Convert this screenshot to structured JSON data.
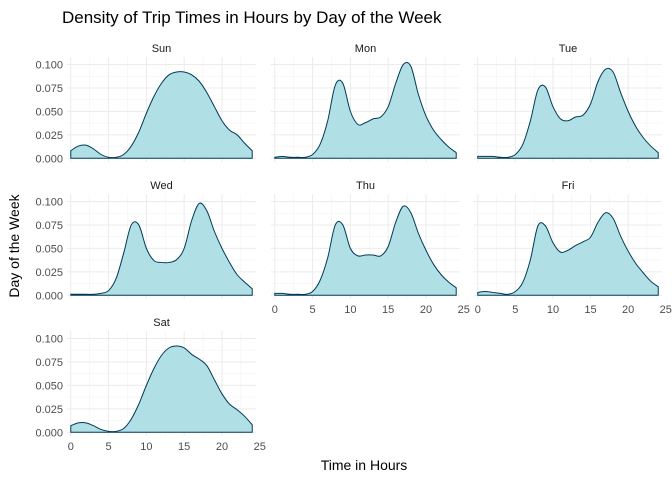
{
  "chart_data": {
    "type": "area",
    "title": "Density of Trip Times in Hours by Day of the Week",
    "xlabel": "Time in Hours",
    "ylabel": "Day of the Week",
    "xlim": [
      -0.5,
      24.5
    ],
    "ylim": [
      -0.004,
      0.108
    ],
    "x_ticks": [
      0,
      5,
      10,
      15,
      20,
      25
    ],
    "y_ticks": [
      0.0,
      0.025,
      0.05,
      0.075,
      0.1
    ],
    "y_tick_labels": [
      "0.000",
      "0.025",
      "0.050",
      "0.075",
      "0.100"
    ],
    "x_tick_labels": [
      "0",
      "5",
      "10",
      "15",
      "20",
      "25"
    ],
    "grid": true,
    "fill_color": "#b0dfe5",
    "line_color": "#003a57",
    "x": [
      0,
      1,
      2,
      3,
      4,
      5,
      6,
      7,
      8,
      9,
      10,
      11,
      12,
      13,
      14,
      15,
      16,
      17,
      18,
      19,
      20,
      21,
      22,
      23,
      24
    ],
    "panels": [
      {
        "name": "Sun",
        "values": [
          0.008,
          0.013,
          0.014,
          0.01,
          0.004,
          0.001,
          0.001,
          0.004,
          0.013,
          0.028,
          0.048,
          0.066,
          0.08,
          0.089,
          0.092,
          0.092,
          0.089,
          0.082,
          0.07,
          0.055,
          0.04,
          0.03,
          0.025,
          0.016,
          0.008
        ]
      },
      {
        "name": "Mon",
        "values": [
          0.001,
          0.002,
          0.001,
          0.001,
          0.001,
          0.004,
          0.015,
          0.04,
          0.078,
          0.08,
          0.05,
          0.036,
          0.038,
          0.042,
          0.044,
          0.055,
          0.08,
          0.1,
          0.098,
          0.068,
          0.045,
          0.03,
          0.02,
          0.012,
          0.006
        ]
      },
      {
        "name": "Tue",
        "values": [
          0.002,
          0.002,
          0.002,
          0.001,
          0.001,
          0.004,
          0.015,
          0.04,
          0.073,
          0.076,
          0.055,
          0.042,
          0.04,
          0.044,
          0.046,
          0.058,
          0.082,
          0.095,
          0.092,
          0.07,
          0.05,
          0.034,
          0.022,
          0.013,
          0.006
        ]
      },
      {
        "name": "Wed",
        "values": [
          0.001,
          0.001,
          0.001,
          0.001,
          0.002,
          0.005,
          0.018,
          0.045,
          0.075,
          0.075,
          0.05,
          0.037,
          0.035,
          0.035,
          0.038,
          0.05,
          0.08,
          0.098,
          0.09,
          0.068,
          0.05,
          0.035,
          0.022,
          0.014,
          0.007
        ]
      },
      {
        "name": "Thu",
        "values": [
          0.002,
          0.002,
          0.001,
          0.001,
          0.001,
          0.004,
          0.016,
          0.04,
          0.075,
          0.075,
          0.05,
          0.042,
          0.043,
          0.043,
          0.042,
          0.052,
          0.078,
          0.095,
          0.088,
          0.066,
          0.048,
          0.033,
          0.022,
          0.014,
          0.008
        ]
      },
      {
        "name": "Fri",
        "values": [
          0.003,
          0.004,
          0.003,
          0.002,
          0.001,
          0.004,
          0.014,
          0.038,
          0.074,
          0.074,
          0.056,
          0.046,
          0.048,
          0.053,
          0.057,
          0.062,
          0.078,
          0.088,
          0.082,
          0.063,
          0.047,
          0.034,
          0.024,
          0.015,
          0.009
        ]
      },
      {
        "name": "Sat",
        "values": [
          0.007,
          0.01,
          0.01,
          0.007,
          0.003,
          0.001,
          0.001,
          0.004,
          0.014,
          0.03,
          0.05,
          0.068,
          0.082,
          0.09,
          0.092,
          0.09,
          0.083,
          0.078,
          0.071,
          0.056,
          0.041,
          0.03,
          0.024,
          0.017,
          0.008
        ]
      }
    ]
  }
}
